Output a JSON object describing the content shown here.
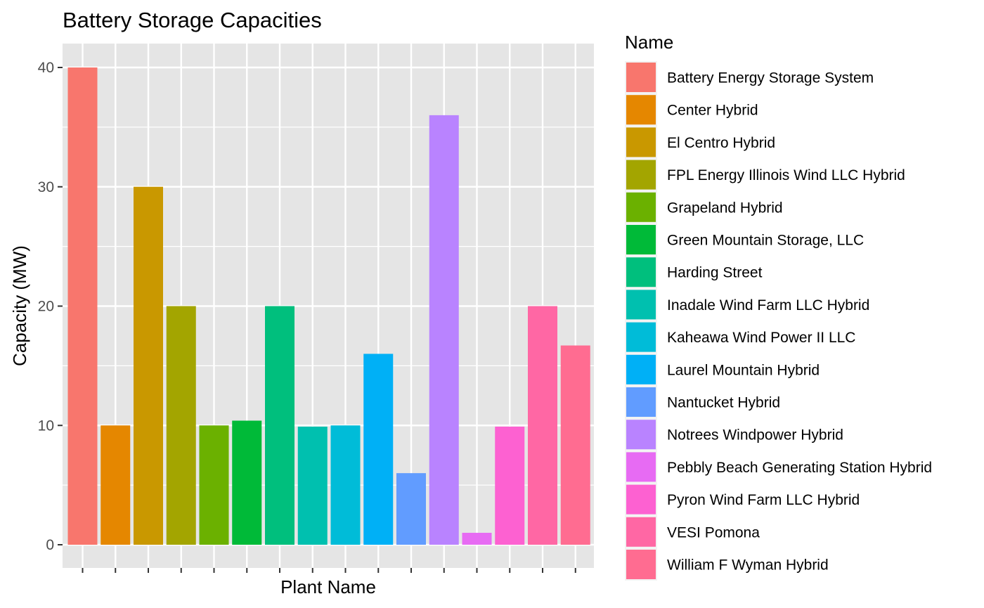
{
  "chart_data": {
    "type": "bar",
    "title": "Battery Storage Capacities",
    "xlabel": "Plant Name",
    "ylabel": "Capacity (MW)",
    "ylim": [
      0,
      40
    ],
    "yticks": [
      0,
      10,
      20,
      30,
      40
    ],
    "grid": true,
    "legend": {
      "title": "Name",
      "position": "right"
    },
    "categories": [
      "Battery Energy Storage System",
      "Center Hybrid",
      "El Centro Hybrid",
      "FPL Energy Illinois Wind LLC Hybrid",
      "Grapeland Hybrid",
      "Green Mountain Storage, LLC",
      "Harding Street",
      "Inadale Wind Farm LLC Hybrid",
      "Kaheawa Wind Power II LLC",
      "Laurel Mountain Hybrid",
      "Nantucket Hybrid",
      "Notrees Windpower Hybrid",
      "Pebbly Beach Generating Station Hybrid",
      "Pyron Wind Farm LLC Hybrid",
      "VESI Pomona",
      "William F Wyman Hybrid"
    ],
    "values": [
      40,
      10,
      30,
      20,
      10,
      10.4,
      20,
      9.9,
      10,
      16,
      6,
      36,
      1,
      9.9,
      20,
      16.7
    ],
    "colors": [
      "#F8766D",
      "#E58700",
      "#C99800",
      "#A3A500",
      "#6BB100",
      "#00BA38",
      "#00BF7D",
      "#00C0AF",
      "#00BCD8",
      "#00B0F6",
      "#619CFF",
      "#B983FF",
      "#E76BF3",
      "#FD61D1",
      "#FF67A4",
      "#FF6C91"
    ],
    "panel_background": "#E5E5E5",
    "grid_color": "#FFFFFF"
  }
}
